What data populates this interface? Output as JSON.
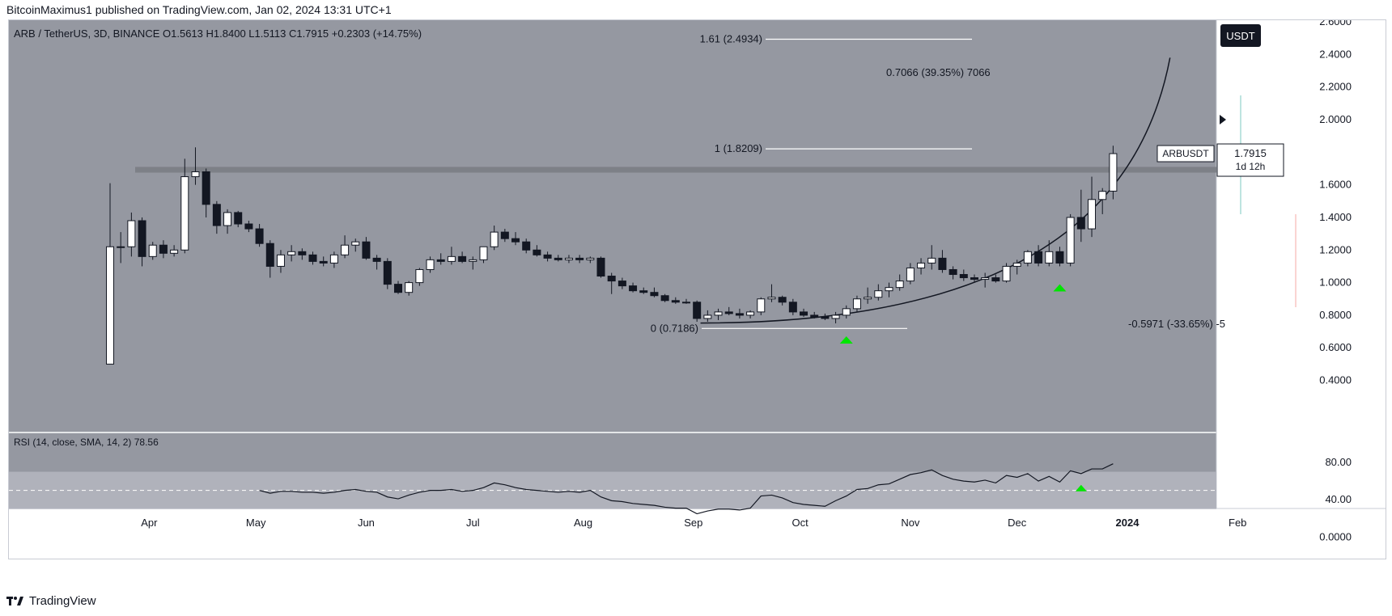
{
  "header": {
    "publisher": "BitcoinMaximus1 published on TradingView.com, Jan 02, 2024 13:31 UTC+1"
  },
  "legend": {
    "symbol": "ARB / TetherUS, 3D, BINANCE",
    "o_label": "O",
    "o": "1.5613",
    "h_label": "H",
    "h": "1.8400",
    "l_label": "L",
    "l": "1.5113",
    "c_label": "C",
    "c": "1.7915",
    "change": "+0.2303 (+14.75%)",
    "color": "#26a69a"
  },
  "currency_button": "USDT",
  "price_tag": {
    "symbol": "ARBUSDT",
    "price": "1.7915",
    "countdown": "1d 12h"
  },
  "footer": {
    "brand": "TradingView",
    "logo_icon": "tradingview-logo-icon"
  },
  "colors": {
    "background": "#9598a1",
    "panel": "#ffffff",
    "candle_up": "#ffffff",
    "candle_down": "#131722",
    "resistance_band": "#7b7e86",
    "arrow": "#00e600",
    "rsi_band": "#b2b5be"
  },
  "chart_data": {
    "type": "candlestick",
    "title": "ARB / TetherUS, 3D, BINANCE",
    "ylim": [
      0.4,
      2.8
    ],
    "y_ticks": [
      "2.6000",
      "2.4000",
      "2.2000",
      "2.0000",
      "1.6000",
      "1.4000",
      "1.2000",
      "1.0000",
      "0.8000",
      "0.6000",
      "0.4000"
    ],
    "x_axis_labels": [
      "Apr",
      "May",
      "Jun",
      "Jul",
      "Aug",
      "Sep",
      "Oct",
      "Nov",
      "Dec",
      "2024",
      "Feb"
    ],
    "x_axis_days": [
      9,
      39,
      70,
      100,
      131,
      162,
      192,
      223,
      253,
      284,
      315
    ],
    "candles": [
      {
        "t": -2,
        "o": 0.5,
        "h": 1.61,
        "l": 0.5,
        "c": 1.22
      },
      {
        "t": 1,
        "o": 1.22,
        "h": 1.31,
        "l": 1.12,
        "c": 1.22
      },
      {
        "t": 4,
        "o": 1.22,
        "h": 1.43,
        "l": 1.16,
        "c": 1.38
      },
      {
        "t": 7,
        "o": 1.38,
        "h": 1.4,
        "l": 1.1,
        "c": 1.16
      },
      {
        "t": 10,
        "o": 1.16,
        "h": 1.25,
        "l": 1.14,
        "c": 1.23
      },
      {
        "t": 13,
        "o": 1.23,
        "h": 1.26,
        "l": 1.15,
        "c": 1.18
      },
      {
        "t": 16,
        "o": 1.18,
        "h": 1.23,
        "l": 1.16,
        "c": 1.2
      },
      {
        "t": 19,
        "o": 1.2,
        "h": 1.76,
        "l": 1.18,
        "c": 1.65
      },
      {
        "t": 22,
        "o": 1.65,
        "h": 1.83,
        "l": 1.6,
        "c": 1.68
      },
      {
        "t": 25,
        "o": 1.68,
        "h": 1.7,
        "l": 1.4,
        "c": 1.48
      },
      {
        "t": 28,
        "o": 1.48,
        "h": 1.5,
        "l": 1.3,
        "c": 1.35
      },
      {
        "t": 31,
        "o": 1.35,
        "h": 1.45,
        "l": 1.3,
        "c": 1.43
      },
      {
        "t": 34,
        "o": 1.43,
        "h": 1.44,
        "l": 1.34,
        "c": 1.36
      },
      {
        "t": 37,
        "o": 1.36,
        "h": 1.38,
        "l": 1.31,
        "c": 1.33
      },
      {
        "t": 40,
        "o": 1.33,
        "h": 1.36,
        "l": 1.22,
        "c": 1.24
      },
      {
        "t": 43,
        "o": 1.24,
        "h": 1.26,
        "l": 1.03,
        "c": 1.1
      },
      {
        "t": 46,
        "o": 1.1,
        "h": 1.2,
        "l": 1.06,
        "c": 1.17
      },
      {
        "t": 49,
        "o": 1.17,
        "h": 1.23,
        "l": 1.13,
        "c": 1.19
      },
      {
        "t": 52,
        "o": 1.19,
        "h": 1.21,
        "l": 1.14,
        "c": 1.17
      },
      {
        "t": 55,
        "o": 1.17,
        "h": 1.19,
        "l": 1.11,
        "c": 1.13
      },
      {
        "t": 58,
        "o": 1.13,
        "h": 1.16,
        "l": 1.1,
        "c": 1.12
      },
      {
        "t": 61,
        "o": 1.12,
        "h": 1.19,
        "l": 1.09,
        "c": 1.17
      },
      {
        "t": 64,
        "o": 1.17,
        "h": 1.29,
        "l": 1.15,
        "c": 1.23
      },
      {
        "t": 67,
        "o": 1.23,
        "h": 1.27,
        "l": 1.19,
        "c": 1.25
      },
      {
        "t": 70,
        "o": 1.25,
        "h": 1.28,
        "l": 1.14,
        "c": 1.15
      },
      {
        "t": 73,
        "o": 1.15,
        "h": 1.17,
        "l": 1.08,
        "c": 1.13
      },
      {
        "t": 76,
        "o": 1.13,
        "h": 1.15,
        "l": 0.96,
        "c": 0.99
      },
      {
        "t": 79,
        "o": 0.99,
        "h": 1.01,
        "l": 0.93,
        "c": 0.94
      },
      {
        "t": 82,
        "o": 0.94,
        "h": 1.01,
        "l": 0.92,
        "c": 1.0
      },
      {
        "t": 85,
        "o": 1.0,
        "h": 1.09,
        "l": 0.98,
        "c": 1.08
      },
      {
        "t": 88,
        "o": 1.08,
        "h": 1.16,
        "l": 1.06,
        "c": 1.14
      },
      {
        "t": 91,
        "o": 1.14,
        "h": 1.18,
        "l": 1.11,
        "c": 1.13
      },
      {
        "t": 94,
        "o": 1.13,
        "h": 1.22,
        "l": 1.11,
        "c": 1.16
      },
      {
        "t": 97,
        "o": 1.16,
        "h": 1.19,
        "l": 1.12,
        "c": 1.13
      },
      {
        "t": 100,
        "o": 1.13,
        "h": 1.16,
        "l": 1.08,
        "c": 1.14
      },
      {
        "t": 103,
        "o": 1.14,
        "h": 1.22,
        "l": 1.12,
        "c": 1.22
      },
      {
        "t": 106,
        "o": 1.22,
        "h": 1.35,
        "l": 1.2,
        "c": 1.31
      },
      {
        "t": 109,
        "o": 1.31,
        "h": 1.33,
        "l": 1.25,
        "c": 1.27
      },
      {
        "t": 112,
        "o": 1.27,
        "h": 1.31,
        "l": 1.23,
        "c": 1.25
      },
      {
        "t": 115,
        "o": 1.25,
        "h": 1.27,
        "l": 1.18,
        "c": 1.2
      },
      {
        "t": 118,
        "o": 1.2,
        "h": 1.23,
        "l": 1.16,
        "c": 1.17
      },
      {
        "t": 121,
        "o": 1.17,
        "h": 1.19,
        "l": 1.13,
        "c": 1.15
      },
      {
        "t": 124,
        "o": 1.15,
        "h": 1.17,
        "l": 1.13,
        "c": 1.14
      },
      {
        "t": 127,
        "o": 1.14,
        "h": 1.17,
        "l": 1.12,
        "c": 1.15
      },
      {
        "t": 130,
        "o": 1.15,
        "h": 1.17,
        "l": 1.12,
        "c": 1.14
      },
      {
        "t": 133,
        "o": 1.14,
        "h": 1.16,
        "l": 1.12,
        "c": 1.15
      },
      {
        "t": 136,
        "o": 1.15,
        "h": 1.16,
        "l": 1.03,
        "c": 1.04
      },
      {
        "t": 139,
        "o": 1.04,
        "h": 1.06,
        "l": 0.93,
        "c": 1.01
      },
      {
        "t": 142,
        "o": 1.01,
        "h": 1.03,
        "l": 0.96,
        "c": 0.98
      },
      {
        "t": 145,
        "o": 0.98,
        "h": 1.0,
        "l": 0.94,
        "c": 0.95
      },
      {
        "t": 148,
        "o": 0.95,
        "h": 0.97,
        "l": 0.93,
        "c": 0.94
      },
      {
        "t": 151,
        "o": 0.94,
        "h": 0.97,
        "l": 0.91,
        "c": 0.92
      },
      {
        "t": 154,
        "o": 0.92,
        "h": 0.93,
        "l": 0.88,
        "c": 0.89
      },
      {
        "t": 157,
        "o": 0.89,
        "h": 0.91,
        "l": 0.87,
        "c": 0.88
      },
      {
        "t": 160,
        "o": 0.88,
        "h": 0.9,
        "l": 0.87,
        "c": 0.88
      },
      {
        "t": 163,
        "o": 0.88,
        "h": 0.89,
        "l": 0.76,
        "c": 0.78
      },
      {
        "t": 166,
        "o": 0.78,
        "h": 0.83,
        "l": 0.76,
        "c": 0.8
      },
      {
        "t": 169,
        "o": 0.8,
        "h": 0.84,
        "l": 0.77,
        "c": 0.82
      },
      {
        "t": 172,
        "o": 0.82,
        "h": 0.85,
        "l": 0.8,
        "c": 0.81
      },
      {
        "t": 175,
        "o": 0.81,
        "h": 0.84,
        "l": 0.78,
        "c": 0.8
      },
      {
        "t": 178,
        "o": 0.8,
        "h": 0.83,
        "l": 0.78,
        "c": 0.82
      },
      {
        "t": 181,
        "o": 0.82,
        "h": 0.91,
        "l": 0.8,
        "c": 0.9
      },
      {
        "t": 184,
        "o": 0.9,
        "h": 0.99,
        "l": 0.88,
        "c": 0.91
      },
      {
        "t": 187,
        "o": 0.91,
        "h": 0.92,
        "l": 0.86,
        "c": 0.88
      },
      {
        "t": 190,
        "o": 0.88,
        "h": 0.9,
        "l": 0.8,
        "c": 0.82
      },
      {
        "t": 193,
        "o": 0.82,
        "h": 0.84,
        "l": 0.79,
        "c": 0.8
      },
      {
        "t": 196,
        "o": 0.8,
        "h": 0.82,
        "l": 0.78,
        "c": 0.79
      },
      {
        "t": 199,
        "o": 0.79,
        "h": 0.81,
        "l": 0.77,
        "c": 0.78
      },
      {
        "t": 202,
        "o": 0.78,
        "h": 0.82,
        "l": 0.75,
        "c": 0.8
      },
      {
        "t": 205,
        "o": 0.8,
        "h": 0.86,
        "l": 0.78,
        "c": 0.84
      },
      {
        "t": 208,
        "o": 0.84,
        "h": 0.92,
        "l": 0.82,
        "c": 0.9
      },
      {
        "t": 211,
        "o": 0.9,
        "h": 0.97,
        "l": 0.87,
        "c": 0.91
      },
      {
        "t": 214,
        "o": 0.91,
        "h": 0.99,
        "l": 0.89,
        "c": 0.95
      },
      {
        "t": 217,
        "o": 0.95,
        "h": 1.0,
        "l": 0.91,
        "c": 0.97
      },
      {
        "t": 220,
        "o": 0.97,
        "h": 1.05,
        "l": 0.95,
        "c": 1.01
      },
      {
        "t": 223,
        "o": 1.01,
        "h": 1.12,
        "l": 0.99,
        "c": 1.09
      },
      {
        "t": 226,
        "o": 1.09,
        "h": 1.15,
        "l": 1.05,
        "c": 1.12
      },
      {
        "t": 229,
        "o": 1.12,
        "h": 1.23,
        "l": 1.08,
        "c": 1.15
      },
      {
        "t": 232,
        "o": 1.15,
        "h": 1.2,
        "l": 1.06,
        "c": 1.08
      },
      {
        "t": 235,
        "o": 1.08,
        "h": 1.1,
        "l": 1.02,
        "c": 1.05
      },
      {
        "t": 238,
        "o": 1.05,
        "h": 1.08,
        "l": 1.01,
        "c": 1.03
      },
      {
        "t": 241,
        "o": 1.03,
        "h": 1.05,
        "l": 1.0,
        "c": 1.02
      },
      {
        "t": 244,
        "o": 1.02,
        "h": 1.06,
        "l": 0.97,
        "c": 1.03
      },
      {
        "t": 247,
        "o": 1.03,
        "h": 1.05,
        "l": 1.0,
        "c": 1.01
      },
      {
        "t": 250,
        "o": 1.01,
        "h": 1.12,
        "l": 1.0,
        "c": 1.1
      },
      {
        "t": 253,
        "o": 1.1,
        "h": 1.14,
        "l": 1.05,
        "c": 1.12
      },
      {
        "t": 256,
        "o": 1.12,
        "h": 1.2,
        "l": 1.1,
        "c": 1.19
      },
      {
        "t": 259,
        "o": 1.19,
        "h": 1.23,
        "l": 1.1,
        "c": 1.12
      },
      {
        "t": 262,
        "o": 1.12,
        "h": 1.26,
        "l": 1.1,
        "c": 1.19
      },
      {
        "t": 265,
        "o": 1.19,
        "h": 1.22,
        "l": 1.1,
        "c": 1.12
      },
      {
        "t": 268,
        "o": 1.12,
        "h": 1.42,
        "l": 1.1,
        "c": 1.4
      },
      {
        "t": 271,
        "o": 1.4,
        "h": 1.57,
        "l": 1.25,
        "c": 1.33
      },
      {
        "t": 274,
        "o": 1.33,
        "h": 1.65,
        "l": 1.28,
        "c": 1.51
      },
      {
        "t": 277,
        "o": 1.51,
        "h": 1.58,
        "l": 1.42,
        "c": 1.56
      },
      {
        "t": 280,
        "o": 1.5613,
        "h": 1.84,
        "l": 1.5113,
        "c": 1.7915
      }
    ],
    "resistance_zone": {
      "from": 1.675,
      "to": 1.71
    },
    "fib_levels": [
      {
        "label": "1.61 (2.4934)",
        "value": 2.4934
      },
      {
        "label": "1 (1.8209)",
        "value": 1.8209
      },
      {
        "label": "0 (0.7186)",
        "value": 0.7186
      }
    ],
    "measurement_up": "0.7066 (39.35%) 7066",
    "measurement_down": "-0.5971 (-33.65%) -5",
    "current_price_marker": 2.0,
    "arrows_at_days": [
      205,
      265
    ],
    "parabolic_support": {
      "start_t": 164,
      "start_price": 0.752,
      "end_t": 296,
      "end_price": 2.38
    },
    "rsi": {
      "label": "RSI (14, close, SMA, 14, 2)",
      "value": "78.56",
      "ylim": [
        10,
        90
      ],
      "y_ticks": [
        "80.00",
        "40.00",
        "0.0000"
      ],
      "band": [
        30,
        70
      ],
      "midline": 50,
      "arrow_at_day": 271,
      "points": [
        [
          40,
          50
        ],
        [
          43,
          47
        ],
        [
          46,
          49
        ],
        [
          49,
          49
        ],
        [
          52,
          48
        ],
        [
          55,
          48
        ],
        [
          58,
          47
        ],
        [
          61,
          48
        ],
        [
          64,
          50
        ],
        [
          67,
          51
        ],
        [
          70,
          49
        ],
        [
          73,
          48
        ],
        [
          76,
          43
        ],
        [
          79,
          41
        ],
        [
          82,
          45
        ],
        [
          85,
          48
        ],
        [
          88,
          50
        ],
        [
          91,
          50
        ],
        [
          94,
          51
        ],
        [
          97,
          49
        ],
        [
          100,
          50
        ],
        [
          103,
          53
        ],
        [
          106,
          58
        ],
        [
          109,
          56
        ],
        [
          112,
          53
        ],
        [
          115,
          51
        ],
        [
          118,
          50
        ],
        [
          121,
          49
        ],
        [
          124,
          48
        ],
        [
          127,
          49
        ],
        [
          130,
          48
        ],
        [
          133,
          50
        ],
        [
          136,
          43
        ],
        [
          139,
          39
        ],
        [
          142,
          38
        ],
        [
          145,
          36
        ],
        [
          148,
          35
        ],
        [
          151,
          34
        ],
        [
          154,
          32
        ],
        [
          157,
          31
        ],
        [
          160,
          31
        ],
        [
          163,
          25
        ],
        [
          166,
          28
        ],
        [
          169,
          30
        ],
        [
          172,
          30
        ],
        [
          175,
          29
        ],
        [
          178,
          31
        ],
        [
          181,
          44
        ],
        [
          184,
          45
        ],
        [
          187,
          42
        ],
        [
          190,
          37
        ],
        [
          193,
          35
        ],
        [
          196,
          34
        ],
        [
          199,
          33
        ],
        [
          202,
          39
        ],
        [
          205,
          44
        ],
        [
          208,
          51
        ],
        [
          211,
          52
        ],
        [
          214,
          56
        ],
        [
          217,
          57
        ],
        [
          220,
          62
        ],
        [
          223,
          67
        ],
        [
          226,
          69
        ],
        [
          229,
          72
        ],
        [
          232,
          66
        ],
        [
          235,
          62
        ],
        [
          238,
          60
        ],
        [
          241,
          59
        ],
        [
          244,
          61
        ],
        [
          247,
          58
        ],
        [
          250,
          66
        ],
        [
          253,
          64
        ],
        [
          256,
          68
        ],
        [
          259,
          60
        ],
        [
          262,
          65
        ],
        [
          265,
          59
        ],
        [
          268,
          71
        ],
        [
          271,
          68
        ],
        [
          274,
          73
        ],
        [
          277,
          73
        ],
        [
          280,
          78.56
        ]
      ]
    }
  }
}
